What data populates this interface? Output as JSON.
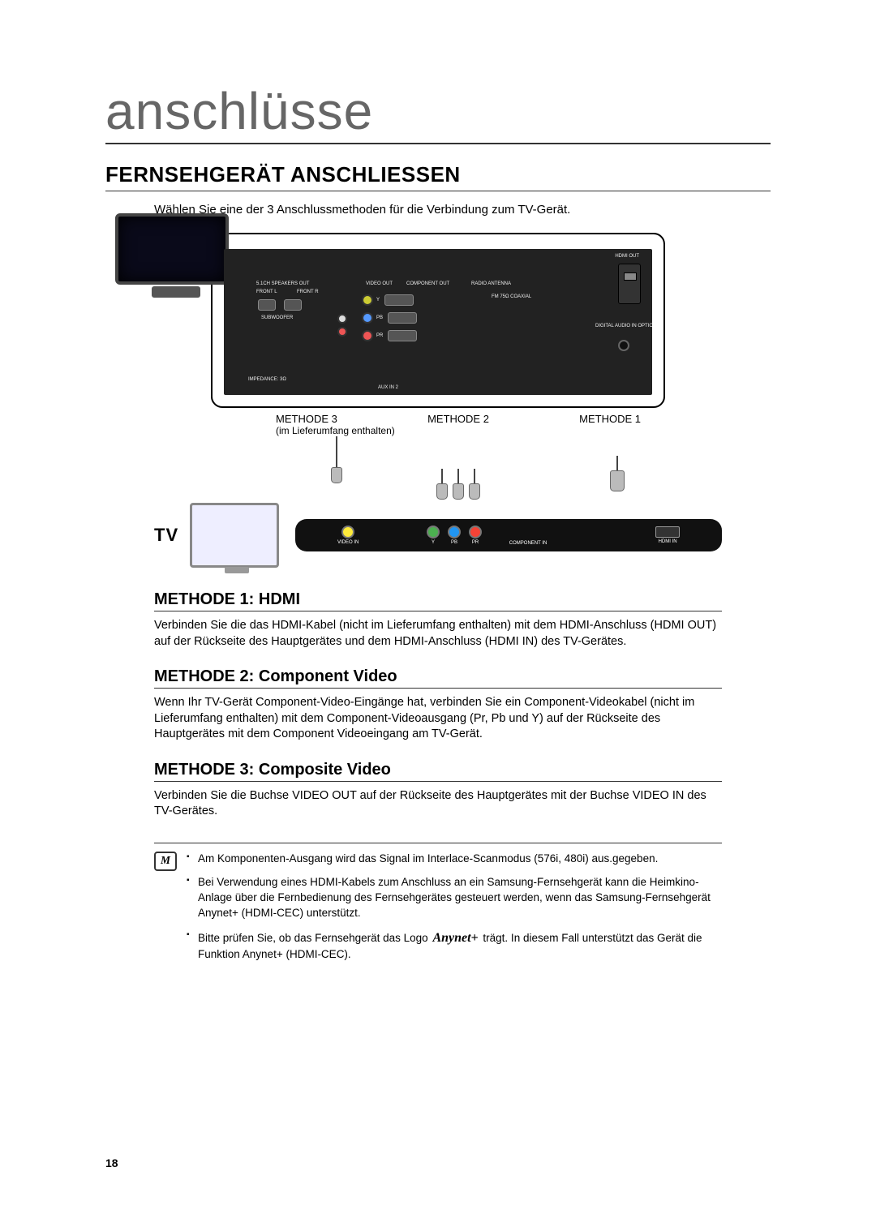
{
  "colors": {
    "title_gray": "#666666",
    "rule": "#333333",
    "panel_bg": "#222222",
    "panel_port": "#555555",
    "text": "#000000",
    "bg": "#ffffff"
  },
  "header": {
    "chapter_title": "anschlüsse",
    "section_title": "FERNSEHGERÄT ANSCHLIESSEN",
    "intro": "Wählen Sie eine der 3 Anschlussmethoden für die Verbindung zum TV-Gerät."
  },
  "diagram": {
    "tv_label": "TV",
    "back_panel_labels": {
      "hdmi_out": "HDMI OUT",
      "video_out": "VIDEO OUT",
      "component_out": "COMPONENT OUT",
      "radio_antenna": "RADIO ANTENNA",
      "fm_75_coaxial": "FM 75Ω COAXIAL",
      "digital_audio_in_optical": "DIGITAL AUDIO IN OPTICAL",
      "speakers_out": "5.1CH SPEAKERS OUT",
      "front_l": "FRONT L",
      "front_r": "FRONT R",
      "subwoofer": "SUBWOOFER",
      "aux_in_2": "AUX IN 2",
      "impedance_3": "IMPEDANCE: 3Ω"
    },
    "method_tags": {
      "m1": "METHODE 1",
      "m2": "METHODE 2",
      "m3": "METHODE 3",
      "m3_sub": "(im Lieferumfang enthalten)"
    },
    "tv_ports": {
      "video_in": "VIDEO IN",
      "component_in": "COMPONENT IN",
      "comp_y": "Y",
      "comp_pb": "PB",
      "comp_pr": "PR",
      "hdmi_in": "HDMI IN"
    }
  },
  "methods": {
    "m1": {
      "title": "METHODE 1: HDMI",
      "text": "Verbinden Sie die das HDMI-Kabel (nicht im Lieferumfang enthalten) mit dem HDMI-Anschluss (HDMI OUT) auf der Rückseite des Hauptgerätes und dem HDMI-Anschluss (HDMI IN) des TV-Gerätes."
    },
    "m2": {
      "title": "METHODE 2: Component Video",
      "text": "Wenn Ihr TV-Gerät Component-Video-Eingänge hat, verbinden Sie ein Component-Videokabel (nicht im Lieferumfang enthalten) mit dem Component-Videoausgang (Pr, Pb und Y) auf der Rückseite des Hauptgerätes mit dem Component Videoeingang am TV-Gerät."
    },
    "m3": {
      "title": "METHODE 3: Composite Video",
      "text": "Verbinden Sie die Buchse VIDEO OUT auf der Rückseite des Hauptgerätes mit der Buchse VIDEO IN des TV-Gerätes."
    }
  },
  "notes": {
    "icon_char": "M",
    "items": [
      "Am Komponenten-Ausgang wird das Signal im Interlace-Scanmodus (576i, 480i) aus.gegeben.",
      "Bei Verwendung eines HDMI-Kabels zum Anschluss an ein Samsung-Fernsehgerät kann die Heimkino-Anlage über die Fernbedienung des Fernsehgerätes gesteuert werden, wenn das Samsung-Fernsehgerät Anynet+ (HDMI-CEC) unterstützt.",
      "Bitte prüfen Sie, ob das Fernsehgerät das Logo Anynet+ trägt. In diesem Fall unterstützt das Gerät die Funktion Anynet+ (HDMI-CEC)."
    ],
    "anynet_logo_text": "Anynet+"
  },
  "page_number": "18"
}
